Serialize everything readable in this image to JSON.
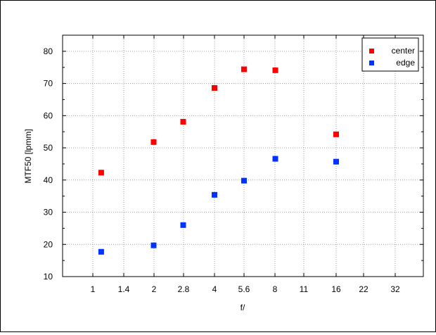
{
  "chart_data": {
    "type": "scatter",
    "xlabel": "f/",
    "ylabel": "MTF50 [lpmm]",
    "x_ticks": [
      "1",
      "1.4",
      "2",
      "2.8",
      "4",
      "5.6",
      "8",
      "11",
      "16",
      "22",
      "32"
    ],
    "y_ticks": [
      10,
      20,
      30,
      40,
      50,
      60,
      70,
      80
    ],
    "ylim": [
      10,
      85
    ],
    "grid": true,
    "legend_position": "top-right",
    "series": [
      {
        "name": "center",
        "color": "#ff0000",
        "points": [
          {
            "x": "1.1",
            "y": 42.3
          },
          {
            "x": "2",
            "y": 51.8
          },
          {
            "x": "2.8",
            "y": 58.1
          },
          {
            "x": "4",
            "y": 68.6
          },
          {
            "x": "5.6",
            "y": 74.4
          },
          {
            "x": "8",
            "y": 74.1
          },
          {
            "x": "16",
            "y": 54.2
          }
        ]
      },
      {
        "name": "edge",
        "color": "#0033ff",
        "points": [
          {
            "x": "1.1",
            "y": 17.7
          },
          {
            "x": "2",
            "y": 19.7
          },
          {
            "x": "2.8",
            "y": 26.0
          },
          {
            "x": "4",
            "y": 35.4
          },
          {
            "x": "5.6",
            "y": 39.8
          },
          {
            "x": "8",
            "y": 46.6
          },
          {
            "x": "16",
            "y": 45.7
          }
        ]
      }
    ]
  }
}
